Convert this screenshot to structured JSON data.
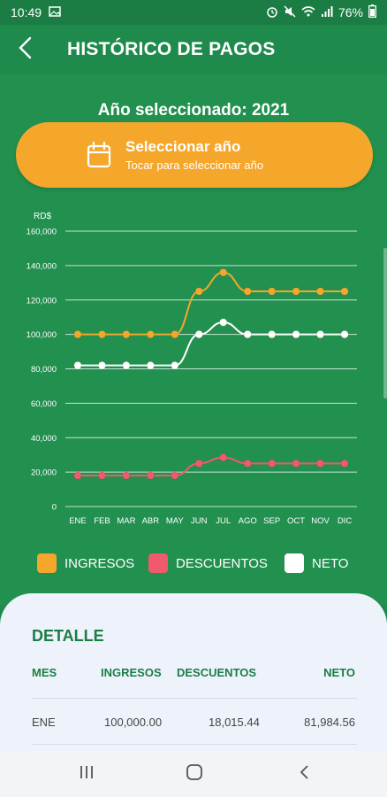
{
  "status": {
    "time": "10:49",
    "battery": "76%"
  },
  "appbar": {
    "title": "HISTÓRICO DE PAGOS"
  },
  "year": {
    "label": "Año seleccionado: 2021",
    "button_title": "Seleccionar año",
    "button_subtitle": "Tocar para seleccionar año"
  },
  "colors": {
    "ingresos": "#f5a72c",
    "descuentos": "#ef5a6c",
    "neto": "#ffffff",
    "grid": "#ffffff",
    "background": "#22904f"
  },
  "legend": {
    "ingresos": "INGRESOS",
    "descuentos": "DESCUENTOS",
    "neto": "NETO"
  },
  "chart_data": {
    "type": "line",
    "ylabel": "RD$",
    "ylim": [
      0,
      160000
    ],
    "yticks": [
      "160,000",
      "140,000",
      "120,000",
      "100,000",
      "80,000",
      "60,000",
      "40,000",
      "20,000",
      "0"
    ],
    "ytick_values": [
      160000,
      140000,
      120000,
      100000,
      80000,
      60000,
      40000,
      20000,
      0
    ],
    "categories": [
      "ENE",
      "FEB",
      "MAR",
      "ABR",
      "MAY",
      "JUN",
      "JUL",
      "AGO",
      "SEP",
      "OCT",
      "NOV",
      "DIC"
    ],
    "grid": true,
    "legend_position": "bottom",
    "series": [
      {
        "name": "INGRESOS",
        "color": "#f5a72c",
        "values": [
          100000,
          100000,
          100000,
          100000,
          100000,
          125000,
          136000,
          125000,
          125000,
          125000,
          125000,
          125000
        ]
      },
      {
        "name": "NETO",
        "color": "#ffffff",
        "values": [
          82000,
          82000,
          82000,
          82000,
          82000,
          100000,
          107000,
          100000,
          100000,
          100000,
          100000,
          100000
        ]
      },
      {
        "name": "DESCUENTOS",
        "color": "#ef5a6c",
        "values": [
          18000,
          18000,
          18000,
          18000,
          18000,
          25000,
          28500,
          25000,
          25000,
          25000,
          25000,
          25000
        ]
      }
    ]
  },
  "detail": {
    "title": "DETALLE",
    "headers": {
      "mes": "MES",
      "ingresos": "INGRESOS",
      "descuentos": "DESCUENTOS",
      "neto": "NETO"
    },
    "rows": [
      {
        "mes": "ENE",
        "ingresos": "100,000.00",
        "descuentos": "18,015.44",
        "neto": "81,984.56"
      }
    ]
  }
}
